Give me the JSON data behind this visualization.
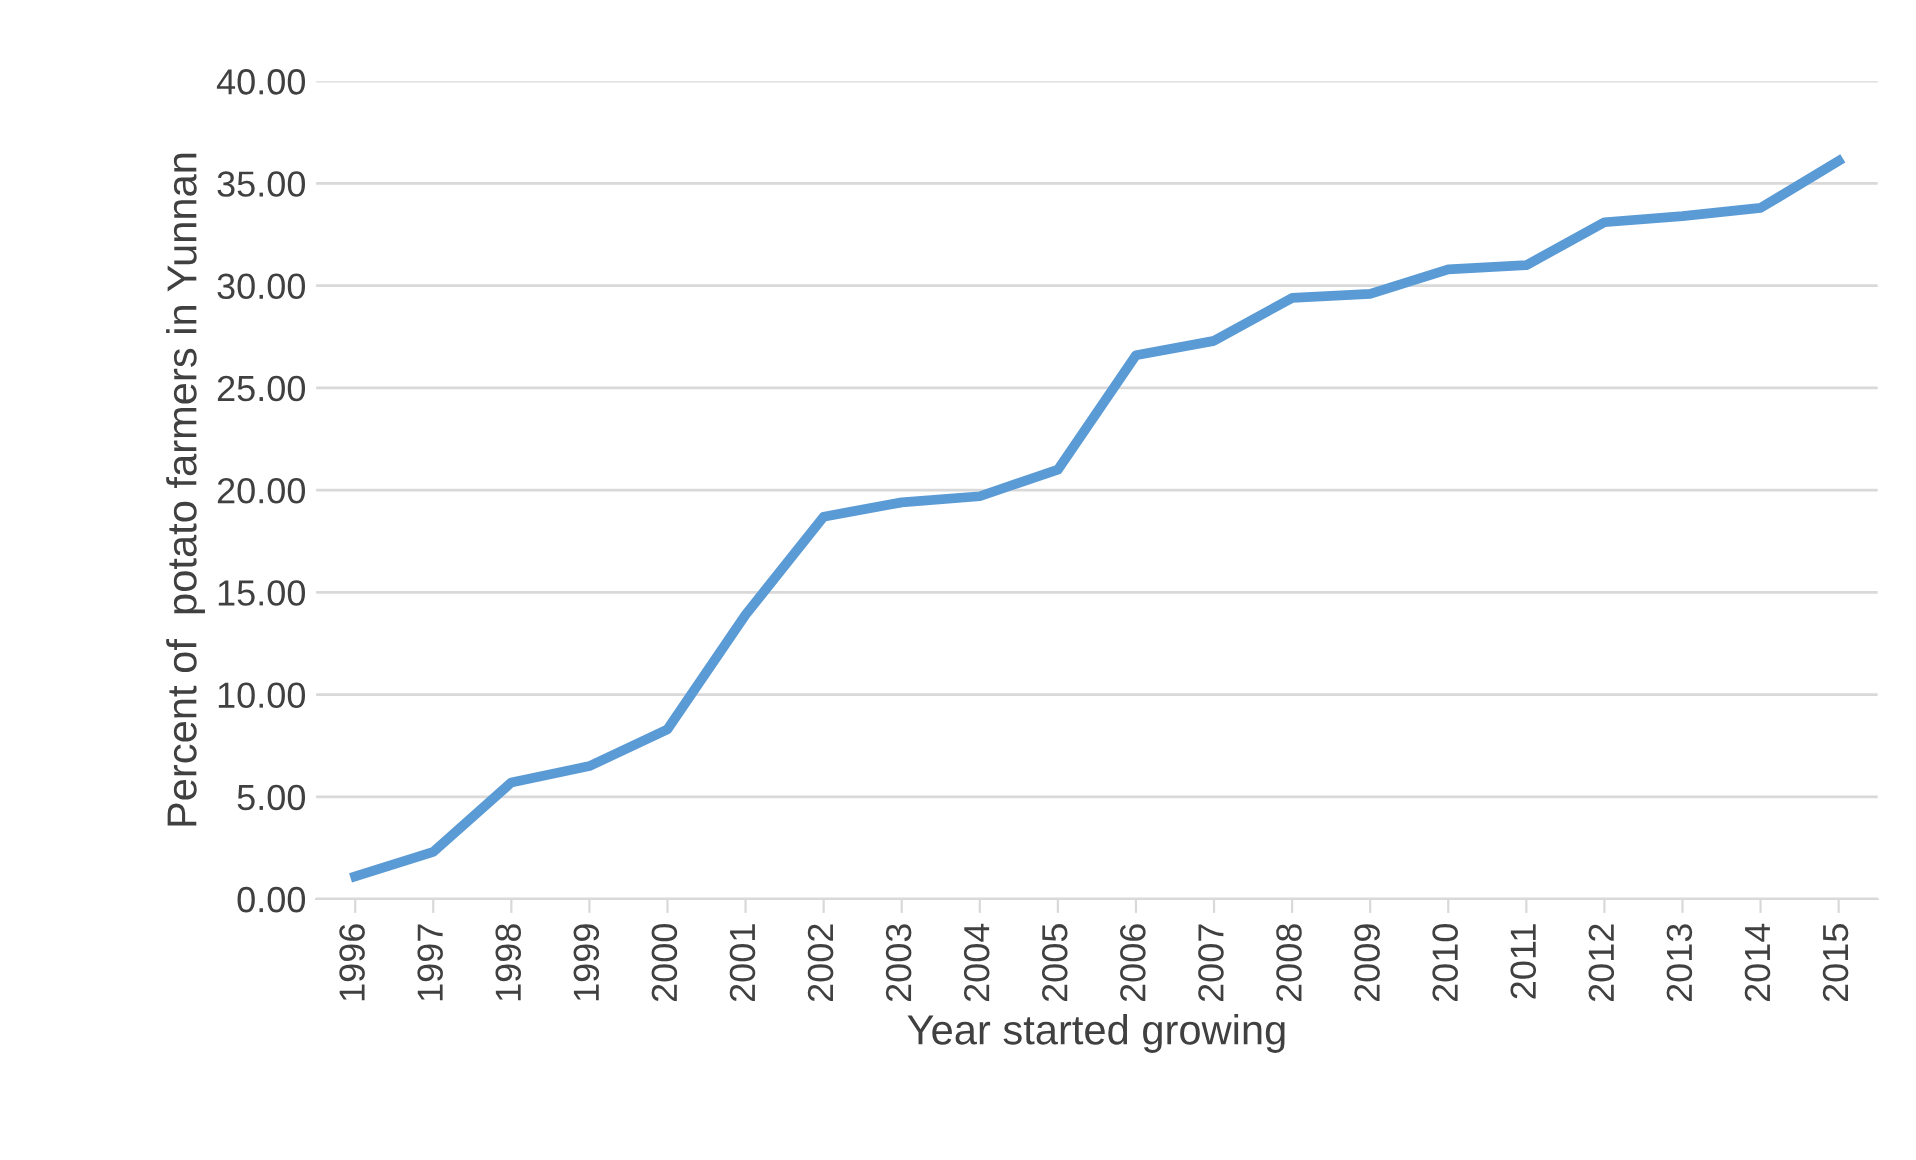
{
  "chart_data": {
    "type": "line",
    "xlabel": "Year started growing",
    "ylabel": "Percent of  potato farmers in Yunnan",
    "categories": [
      "1996",
      "1997",
      "1998",
      "1999",
      "2000",
      "2001",
      "2002",
      "2003",
      "2004",
      "2005",
      "2006",
      "2007",
      "2008",
      "2009",
      "2010",
      "2011",
      "2012",
      "2013",
      "2014",
      "2015"
    ],
    "series": [
      {
        "color": "#5b9bd5",
        "values": [
          1.1,
          2.3,
          5.7,
          6.5,
          8.3,
          13.9,
          18.7,
          19.4,
          19.7,
          21.0,
          26.6,
          27.3,
          29.4,
          29.6,
          30.8,
          31.0,
          33.1,
          33.4,
          33.8,
          36.1
        ]
      }
    ],
    "ylim": [
      0,
      40
    ],
    "yticks": [
      {
        "value": 0,
        "label": "0.00"
      },
      {
        "value": 5,
        "label": "5.00"
      },
      {
        "value": 10,
        "label": "10.00"
      },
      {
        "value": 15,
        "label": "15.00"
      },
      {
        "value": 20,
        "label": "20.00"
      },
      {
        "value": 25,
        "label": "25.00"
      },
      {
        "value": 30,
        "label": "30.00"
      },
      {
        "value": 35,
        "label": "35.00"
      },
      {
        "value": 40,
        "label": "40.00"
      }
    ],
    "grid": "y",
    "legend": false,
    "marker": "none",
    "line_style": "solid"
  }
}
